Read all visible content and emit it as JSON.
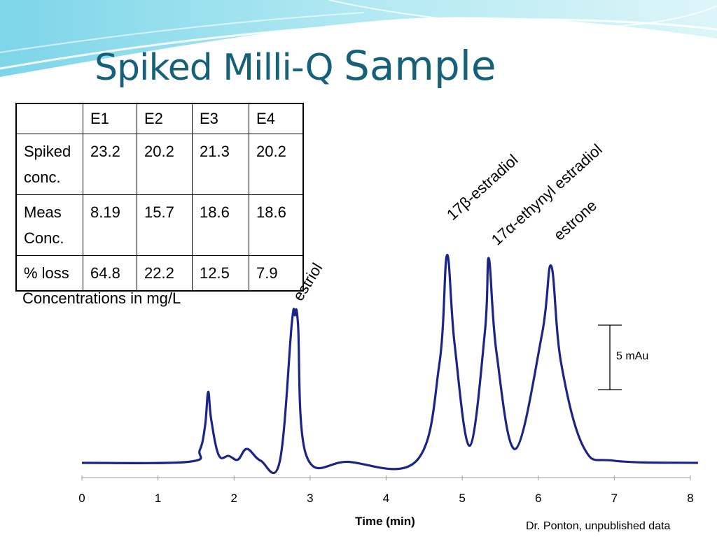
{
  "slide": {
    "title_part1": "Spiked Milli-Q ",
    "title_part2": "Sample",
    "note": "Concentrations in mg/L",
    "credit": "Dr. Ponton, unpublished data"
  },
  "table": {
    "headers": [
      "",
      "E1",
      "E2",
      "E3",
      "E4"
    ],
    "rows": [
      {
        "label_line1": "Spiked",
        "label_line2": "conc.",
        "values": [
          "23.2",
          "20.2",
          "21.3",
          "20.2"
        ]
      },
      {
        "label_line1": "Meas",
        "label_line2": "Conc.",
        "values": [
          "8.19",
          "15.7",
          "18.6",
          "18.6"
        ]
      },
      {
        "label_line1": "% loss",
        "label_line2": "",
        "values": [
          "64.8",
          "22.2",
          "12.5",
          "7.9"
        ]
      }
    ]
  },
  "chart_data": {
    "type": "line",
    "xlabel": "Time (min)",
    "ylabel": "",
    "xlim": [
      0,
      8
    ],
    "x_ticks": [
      "0",
      "1",
      "2",
      "3",
      "4",
      "5",
      "6",
      "7",
      "8"
    ],
    "y_units": "mAu",
    "baseline_mAu": 0,
    "scale_bar": {
      "label": "5 mAu",
      "value_mAu": 5
    },
    "series": [
      {
        "color": "#1c2587",
        "x": [
          0,
          1.4,
          1.55,
          1.62,
          1.66,
          1.7,
          1.8,
          1.93,
          2.05,
          2.17,
          2.35,
          2.6,
          2.76,
          2.8,
          2.84,
          2.95,
          3.5,
          4.4,
          4.7,
          4.8,
          4.9,
          5.1,
          5.3,
          5.35,
          5.45,
          5.7,
          6.05,
          6.17,
          6.3,
          6.6,
          7.0,
          8.1
        ],
        "y": [
          0,
          0.1,
          1.2,
          3.5,
          6.6,
          4.0,
          0.7,
          0.65,
          0.3,
          1.3,
          0.2,
          0.1,
          13.0,
          13.7,
          13.0,
          0.7,
          0.1,
          0.2,
          9.2,
          19.3,
          11.0,
          1.6,
          12.3,
          19.0,
          10.3,
          1.3,
          12.0,
          18.3,
          9.3,
          1.4,
          0.2,
          0
        ]
      }
    ],
    "peak_labels": [
      {
        "text": "estriol",
        "x": 2.8
      },
      {
        "text": "17β-estradiol",
        "x": 4.8
      },
      {
        "text": "17α-ethynyl estradiol",
        "x": 5.35
      },
      {
        "text": "estrone",
        "x": 6.17
      }
    ]
  }
}
